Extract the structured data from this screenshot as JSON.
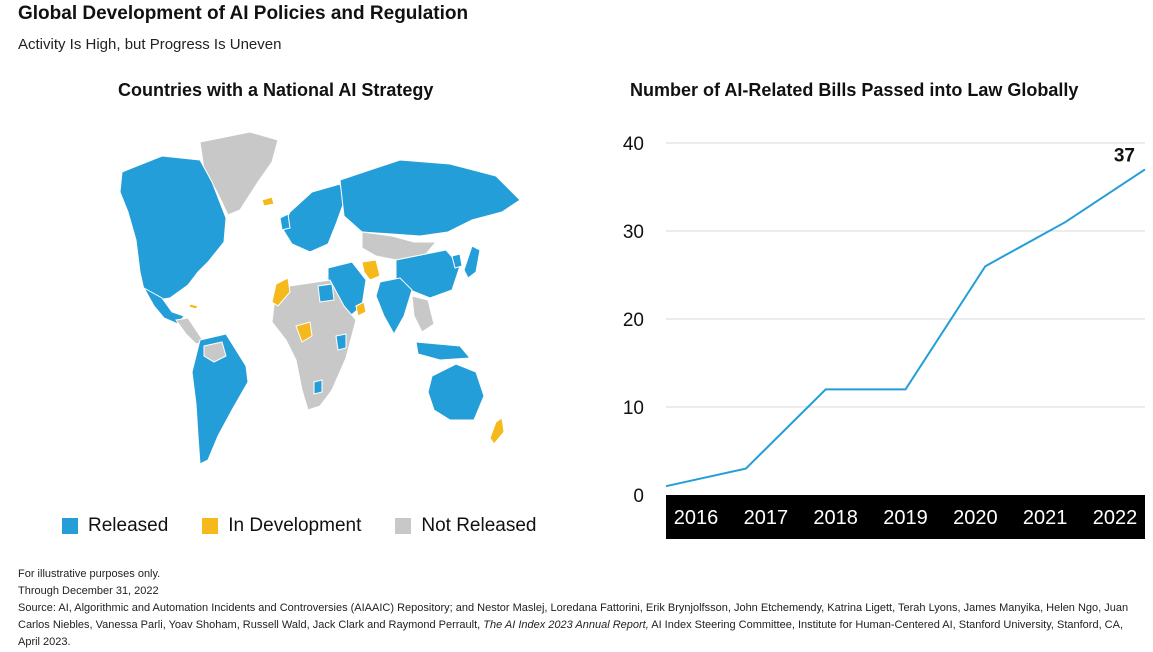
{
  "header": {
    "title": "Global Development of AI Policies and Regulation",
    "subtitle": "Activity Is High, but Progress Is Uneven"
  },
  "map": {
    "title": "Countries with a National AI Strategy",
    "legend": [
      {
        "label": "Released",
        "color": "#249ed8"
      },
      {
        "label": "In Development",
        "color": "#f6b91c"
      },
      {
        "label": "Not Released",
        "color": "#c8c8c8"
      }
    ]
  },
  "chart_data": {
    "type": "line",
    "title": "Number of AI-Related Bills Passed into Law Globally",
    "categories": [
      "2016",
      "2017",
      "2018",
      "2019",
      "2020",
      "2021",
      "2022"
    ],
    "values": [
      1,
      3,
      12,
      12,
      26,
      31,
      37
    ],
    "ylim": [
      0,
      40
    ],
    "yticks": [
      0,
      10,
      20,
      30,
      40
    ],
    "grid": true,
    "line_color": "#249ed8",
    "end_label": "37"
  },
  "footnotes": {
    "line1": "For illustrative purposes only.",
    "line2": "Through December 31, 2022",
    "source_prefix": "Source: AI, Algorithmic and Automation Incidents and Controversies (AIAAIC) Repository; and Nestor Maslej, Loredana Fattorini, Erik Brynjolfsson, John Etchemendy, Katrina Ligett, Terah Lyons, James Manyika, Helen Ngo, Juan Carlos Niebles, Vanessa Parli, Yoav Shoham, Russell Wald, Jack Clark and Raymond Perrault, ",
    "source_report": "The AI Index 2023 Annual Report,",
    "source_suffix": " AI Index Steering Committee, Institute for Human-Centered AI, Stanford University, Stanford, CA, April 2023."
  }
}
